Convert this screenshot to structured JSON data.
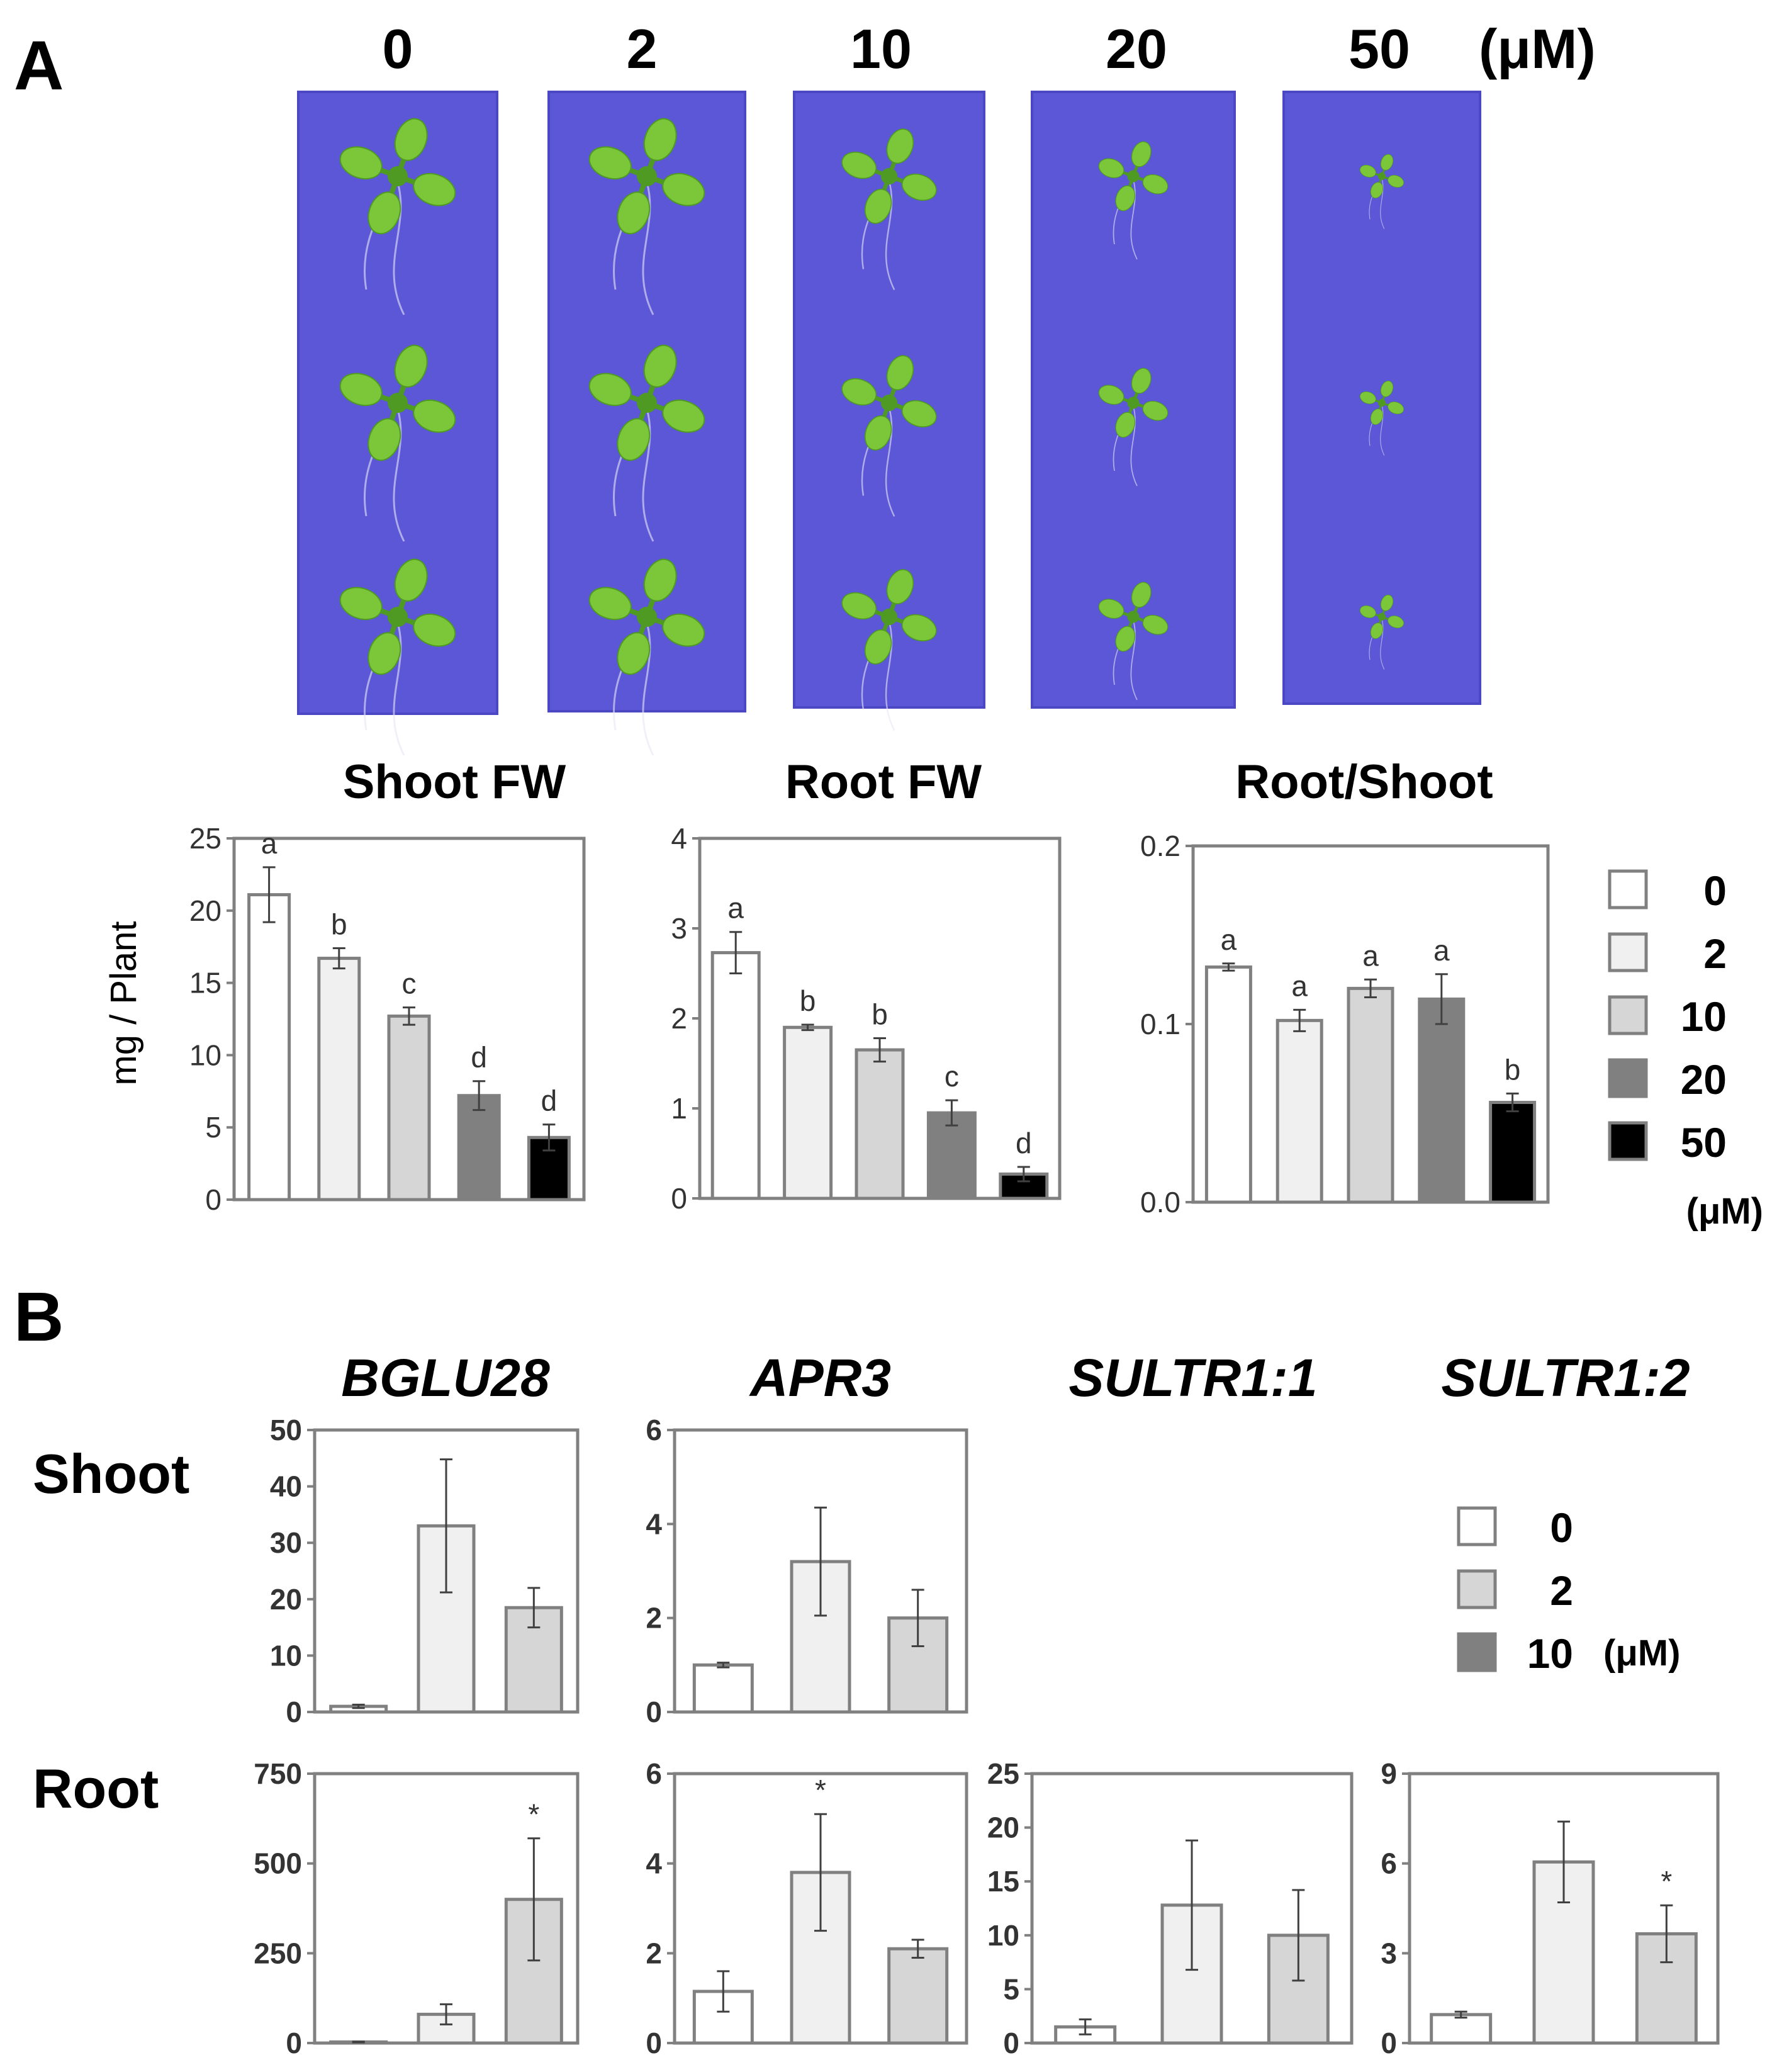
{
  "panel_a": {
    "letter": "A",
    "concentrations": [
      "0",
      "2",
      "10",
      "20",
      "50"
    ],
    "unit": "(μM)",
    "photo_colors": {
      "plate": "#5b57d6",
      "plate_edge": "#4c48c4",
      "leaf": "#7cc63a",
      "leaf_dark": "#4e9a22",
      "root": "#e8e6f5"
    },
    "plant_scale": [
      1.0,
      1.0,
      0.82,
      0.6,
      0.38
    ],
    "ylabel": "mg / Plant",
    "legend": {
      "items": [
        "0",
        "2",
        "10",
        "20",
        "50"
      ],
      "unit": "(μM)"
    }
  },
  "panel_b": {
    "letter": "B",
    "row_labels": [
      "Shoot",
      "Root"
    ],
    "legend": {
      "items": [
        "0",
        "2",
        "10"
      ],
      "unit": "(μM)"
    }
  },
  "bar_colors": {
    "0": "#ffffff",
    "2": "#f0f0f0",
    "10": "#d6d6d6",
    "20": "#808080",
    "50": "#000000"
  },
  "chart_data": [
    {
      "id": "shoot_fw",
      "type": "bar",
      "title": "Shoot FW",
      "ylabel": "mg / Plant",
      "categories": [
        "0",
        "2",
        "10",
        "20",
        "50"
      ],
      "values": [
        21.1,
        16.7,
        12.7,
        7.2,
        4.3
      ],
      "errors": [
        1.9,
        0.7,
        0.6,
        1.0,
        0.9
      ],
      "significance": [
        "a",
        "b",
        "c",
        "d",
        "d"
      ],
      "ylim": [
        0,
        25
      ],
      "yticks": [
        "0",
        "5",
        "10",
        "15",
        "20",
        "25"
      ],
      "grid": false
    },
    {
      "id": "root_fw",
      "type": "bar",
      "title": "Root FW",
      "categories": [
        "0",
        "2",
        "10",
        "20",
        "50"
      ],
      "values": [
        2.73,
        1.9,
        1.65,
        0.95,
        0.27
      ],
      "errors": [
        0.23,
        0.03,
        0.13,
        0.14,
        0.08
      ],
      "significance": [
        "a",
        "b",
        "b",
        "c",
        "d"
      ],
      "ylim": [
        0,
        4
      ],
      "yticks": [
        "0",
        "1",
        "2",
        "3",
        "4"
      ],
      "grid": false
    },
    {
      "id": "root_shoot",
      "type": "bar",
      "title": "Root/Shoot",
      "categories": [
        "0",
        "2",
        "10",
        "20",
        "50"
      ],
      "values": [
        0.132,
        0.102,
        0.12,
        0.114,
        0.056
      ],
      "errors": [
        0.002,
        0.006,
        0.005,
        0.014,
        0.005
      ],
      "significance": [
        "a",
        "a",
        "a",
        "a",
        "b"
      ],
      "ylim": [
        0,
        0.2
      ],
      "yticks": [
        "0.0",
        "0.1",
        "0.2"
      ],
      "grid": false
    },
    {
      "id": "bglu28_shoot",
      "type": "bar",
      "title": "BGLU28",
      "tissue": "Shoot",
      "categories": [
        "0",
        "2",
        "10"
      ],
      "values": [
        1,
        33,
        18.5
      ],
      "errors": [
        0.3,
        11.8,
        3.5
      ],
      "significance": [
        "",
        "",
        ""
      ],
      "ylim": [
        0,
        50
      ],
      "yticks": [
        "0",
        "10",
        "20",
        "30",
        "40",
        "50"
      ]
    },
    {
      "id": "apr3_shoot",
      "type": "bar",
      "title": "APR3",
      "tissue": "Shoot",
      "categories": [
        "0",
        "2",
        "10"
      ],
      "values": [
        1,
        3.2,
        2.0
      ],
      "errors": [
        0.05,
        1.15,
        0.6
      ],
      "significance": [
        "",
        "",
        ""
      ],
      "ylim": [
        0,
        6
      ],
      "yticks": [
        "0",
        "2",
        "4",
        "6"
      ]
    },
    {
      "id": "bglu28_root",
      "type": "bar",
      "tissue": "Root",
      "categories": [
        "0",
        "2",
        "10"
      ],
      "values": [
        3,
        80,
        400
      ],
      "errors": [
        1,
        28,
        170
      ],
      "significance": [
        "",
        "",
        "*"
      ],
      "ylim": [
        0,
        750
      ],
      "yticks": [
        "0",
        "250",
        "500",
        "750"
      ]
    },
    {
      "id": "apr3_root",
      "type": "bar",
      "tissue": "Root",
      "categories": [
        "0",
        "2",
        "10"
      ],
      "values": [
        1.15,
        3.8,
        2.1
      ],
      "errors": [
        0.45,
        1.3,
        0.2
      ],
      "significance": [
        "",
        "*",
        ""
      ],
      "ylim": [
        0,
        6
      ],
      "yticks": [
        "0",
        "2",
        "4",
        "6"
      ]
    },
    {
      "id": "sultr11_root",
      "type": "bar",
      "title": "SULTR1:1",
      "tissue": "Root",
      "categories": [
        "0",
        "2",
        "10"
      ],
      "values": [
        1.5,
        12.8,
        10.0
      ],
      "errors": [
        0.7,
        6.0,
        4.2
      ],
      "significance": [
        "",
        "",
        ""
      ],
      "ylim": [
        0,
        25
      ],
      "yticks": [
        "0",
        "5",
        "10",
        "15",
        "20",
        "25"
      ]
    },
    {
      "id": "sultr12_root",
      "type": "bar",
      "title": "SULTR1:2",
      "tissue": "Root",
      "categories": [
        "0",
        "2",
        "10"
      ],
      "values": [
        0.95,
        6.05,
        3.65
      ],
      "errors": [
        0.1,
        1.35,
        0.95
      ],
      "significance": [
        "",
        "",
        "*"
      ],
      "ylim": [
        0,
        9
      ],
      "yticks": [
        "0",
        "3",
        "6",
        "9"
      ]
    }
  ]
}
